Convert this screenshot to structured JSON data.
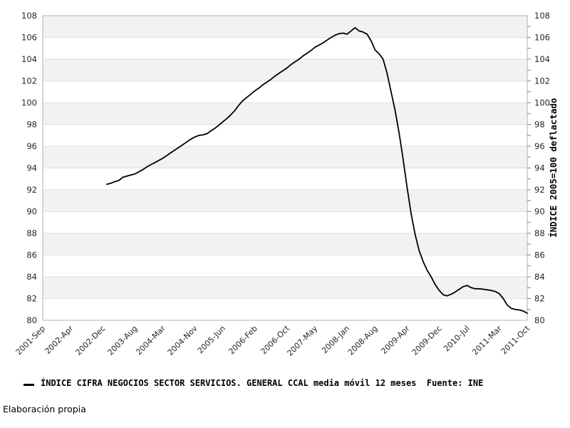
{
  "legend": {
    "label": "ÍNDICE CIFRA NEGOCIOS SECTOR SERVICIOS. GENERAL CCAL media móvil 12 meses  Fuente: INE"
  },
  "footer": {
    "text": "Elaboración propia"
  },
  "chart_data": {
    "type": "line",
    "title": "",
    "y2_label": "ÍNDICE 2005=100 deflactado",
    "source": "Fuente: INE",
    "grid": true,
    "legend_position": "bottom-left",
    "band_color": "#f2f2f2",
    "grid_color": "#e0e0e0",
    "spine_color": "#b0b0b0",
    "tick_color": "#808080",
    "tick_label_color": "#262626",
    "ylim": [
      80,
      108
    ],
    "y_tick_step": 2,
    "y_ticks": [
      80,
      82,
      84,
      86,
      88,
      90,
      92,
      94,
      96,
      98,
      100,
      102,
      104,
      106,
      108
    ],
    "x_min": "2001-09",
    "x_max": "2011-10",
    "x_ticks": [
      {
        "label": "2001-Sep",
        "month": "2001-09"
      },
      {
        "label": "2002-Apr",
        "month": "2002-04"
      },
      {
        "label": "2002-Dec",
        "month": "2002-12"
      },
      {
        "label": "2003-Aug",
        "month": "2003-08"
      },
      {
        "label": "2004-Mar",
        "month": "2004-03"
      },
      {
        "label": "2004-Nov",
        "month": "2004-11"
      },
      {
        "label": "2005-Jun",
        "month": "2005-06"
      },
      {
        "label": "2006-Feb",
        "month": "2006-02"
      },
      {
        "label": "2006-Oct",
        "month": "2006-10"
      },
      {
        "label": "2007-May",
        "month": "2007-05"
      },
      {
        "label": "2008-Jan",
        "month": "2008-01"
      },
      {
        "label": "2008-Aug",
        "month": "2008-08"
      },
      {
        "label": "2009-Apr",
        "month": "2009-04"
      },
      {
        "label": "2009-Dec",
        "month": "2009-12"
      },
      {
        "label": "2010-Jul",
        "month": "2010-07"
      },
      {
        "label": "2011-Mar",
        "month": "2011-03"
      },
      {
        "label": "2011-Oct",
        "month": "2011-10"
      }
    ],
    "series": [
      {
        "name": "ÍNDICE CIFRA NEGOCIOS SECTOR SERVICIOS. GENERAL CCAL media móvil 12 meses",
        "color": "#000000",
        "points": [
          [
            "2003-01",
            92.5
          ],
          [
            "2003-02",
            92.6
          ],
          [
            "2003-03",
            92.75
          ],
          [
            "2003-04",
            92.85
          ],
          [
            "2003-05",
            93.15
          ],
          [
            "2003-06",
            93.25
          ],
          [
            "2003-07",
            93.35
          ],
          [
            "2003-08",
            93.45
          ],
          [
            "2003-09",
            93.65
          ],
          [
            "2003-10",
            93.85
          ],
          [
            "2003-11",
            94.1
          ],
          [
            "2003-12",
            94.3
          ],
          [
            "2004-01",
            94.5
          ],
          [
            "2004-02",
            94.7
          ],
          [
            "2004-03",
            94.9
          ],
          [
            "2004-04",
            95.15
          ],
          [
            "2004-05",
            95.4
          ],
          [
            "2004-06",
            95.65
          ],
          [
            "2004-07",
            95.9
          ],
          [
            "2004-08",
            96.15
          ],
          [
            "2004-09",
            96.4
          ],
          [
            "2004-10",
            96.65
          ],
          [
            "2004-11",
            96.85
          ],
          [
            "2004-12",
            97.0
          ],
          [
            "2005-01",
            97.05
          ],
          [
            "2005-02",
            97.15
          ],
          [
            "2005-03",
            97.4
          ],
          [
            "2005-04",
            97.65
          ],
          [
            "2005-05",
            97.95
          ],
          [
            "2005-06",
            98.25
          ],
          [
            "2005-07",
            98.55
          ],
          [
            "2005-08",
            98.9
          ],
          [
            "2005-09",
            99.3
          ],
          [
            "2005-10",
            99.8
          ],
          [
            "2005-11",
            100.2
          ],
          [
            "2005-12",
            100.5
          ],
          [
            "2006-01",
            100.8
          ],
          [
            "2006-02",
            101.1
          ],
          [
            "2006-03",
            101.35
          ],
          [
            "2006-04",
            101.65
          ],
          [
            "2006-05",
            101.9
          ],
          [
            "2006-06",
            102.15
          ],
          [
            "2006-07",
            102.45
          ],
          [
            "2006-08",
            102.7
          ],
          [
            "2006-09",
            102.95
          ],
          [
            "2006-10",
            103.2
          ],
          [
            "2006-11",
            103.5
          ],
          [
            "2006-12",
            103.75
          ],
          [
            "2007-01",
            104.0
          ],
          [
            "2007-02",
            104.3
          ],
          [
            "2007-03",
            104.55
          ],
          [
            "2007-04",
            104.8
          ],
          [
            "2007-05",
            105.1
          ],
          [
            "2007-06",
            105.3
          ],
          [
            "2007-07",
            105.5
          ],
          [
            "2007-08",
            105.75
          ],
          [
            "2007-09",
            106.0
          ],
          [
            "2007-10",
            106.2
          ],
          [
            "2007-11",
            106.35
          ],
          [
            "2007-12",
            106.4
          ],
          [
            "2008-01",
            106.3
          ],
          [
            "2008-02",
            106.6
          ],
          [
            "2008-03",
            106.9
          ],
          [
            "2008-04",
            106.6
          ],
          [
            "2008-05",
            106.5
          ],
          [
            "2008-06",
            106.3
          ],
          [
            "2008-07",
            105.7
          ],
          [
            "2008-08",
            104.85
          ],
          [
            "2008-09",
            104.5
          ],
          [
            "2008-10",
            104.0
          ],
          [
            "2008-11",
            102.7
          ],
          [
            "2008-12",
            101.0
          ],
          [
            "2009-01",
            99.3
          ],
          [
            "2009-02",
            97.2
          ],
          [
            "2009-03",
            94.8
          ],
          [
            "2009-04",
            92.2
          ],
          [
            "2009-05",
            89.8
          ],
          [
            "2009-06",
            87.9
          ],
          [
            "2009-07",
            86.4
          ],
          [
            "2009-08",
            85.4
          ],
          [
            "2009-09",
            84.6
          ],
          [
            "2009-10",
            84.0
          ],
          [
            "2009-11",
            83.3
          ],
          [
            "2009-12",
            82.75
          ],
          [
            "2010-01",
            82.35
          ],
          [
            "2010-02",
            82.25
          ],
          [
            "2010-03",
            82.4
          ],
          [
            "2010-04",
            82.6
          ],
          [
            "2010-05",
            82.85
          ],
          [
            "2010-06",
            83.1
          ],
          [
            "2010-07",
            83.2
          ],
          [
            "2010-08",
            83.0
          ],
          [
            "2010-09",
            82.9
          ],
          [
            "2010-10",
            82.9
          ],
          [
            "2010-11",
            82.85
          ],
          [
            "2010-12",
            82.8
          ],
          [
            "2011-01",
            82.75
          ],
          [
            "2011-02",
            82.65
          ],
          [
            "2011-03",
            82.45
          ],
          [
            "2011-04",
            82.0
          ],
          [
            "2011-05",
            81.4
          ],
          [
            "2011-06",
            81.1
          ],
          [
            "2011-07",
            81.0
          ],
          [
            "2011-08",
            80.95
          ],
          [
            "2011-09",
            80.85
          ],
          [
            "2011-10",
            80.65
          ]
        ]
      }
    ]
  }
}
